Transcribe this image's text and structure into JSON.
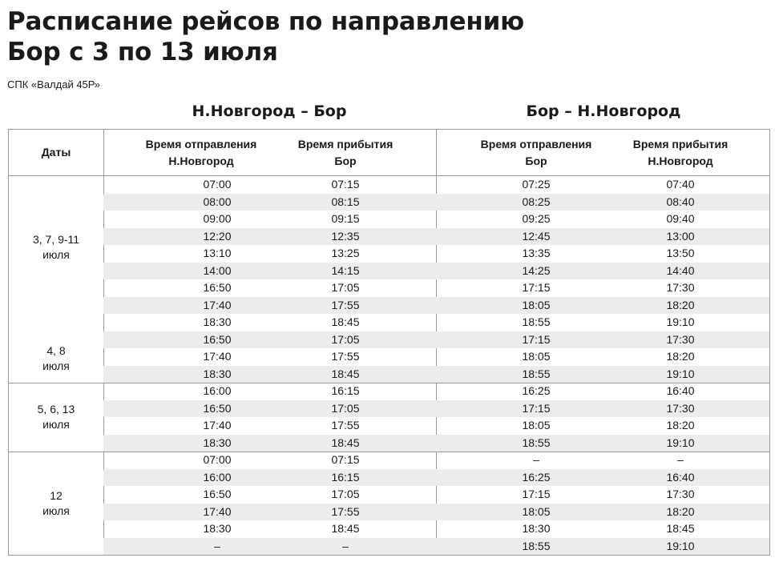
{
  "title": [
    "Расписание рейсов по направлению",
    "Бор с 3 по 13 июля"
  ],
  "subtitle": "СПК «Валдай 45Р»",
  "directions": {
    "left": "Н.Новгород – Бор",
    "right": "Бор – Н.Новгород"
  },
  "columns": {
    "dates": [
      "Даты"
    ],
    "dep_left": [
      "Время отправления",
      "Н.Новгород"
    ],
    "arr_left": [
      "Время прибытия",
      "Бор"
    ],
    "dep_right": [
      "Время отправления",
      "Бор"
    ],
    "arr_right": [
      "Время прибытия",
      "Н.Новгород"
    ]
  },
  "date_groups": [
    {
      "label": [
        "3, 7, 9-11",
        "июля"
      ],
      "first_row": 0,
      "row_count": 9
    },
    {
      "label": [
        "4, 8",
        "июля"
      ],
      "first_row": 9,
      "row_count": 3
    },
    {
      "label": [
        "5, 6, 13",
        "июля"
      ],
      "first_row": 12,
      "row_count": 4
    },
    {
      "label": [
        "12",
        "июля"
      ],
      "first_row": 16,
      "row_count": 6
    }
  ],
  "rows": [
    [
      "07:00",
      "07:15",
      "07:25",
      "07:40"
    ],
    [
      "08:00",
      "08:15",
      "08:25",
      "08:40"
    ],
    [
      "09:00",
      "09:15",
      "09:25",
      "09:40"
    ],
    [
      "12:20",
      "12:35",
      "12:45",
      "13:00"
    ],
    [
      "13:10",
      "13:25",
      "13:35",
      "13:50"
    ],
    [
      "14:00",
      "14:15",
      "14:25",
      "14:40"
    ],
    [
      "16:50",
      "17:05",
      "17:15",
      "17:30"
    ],
    [
      "17:40",
      "17:55",
      "18:05",
      "18:20"
    ],
    [
      "18:30",
      "18:45",
      "18:55",
      "19:10"
    ],
    [
      "16:50",
      "17:05",
      "17:15",
      "17:30"
    ],
    [
      "17:40",
      "17:55",
      "18:05",
      "18:20"
    ],
    [
      "18:30",
      "18:45",
      "18:55",
      "19:10"
    ],
    [
      "16:00",
      "16:15",
      "16:25",
      "16:40"
    ],
    [
      "16:50",
      "17:05",
      "17:15",
      "17:30"
    ],
    [
      "17:40",
      "17:55",
      "18:05",
      "18:20"
    ],
    [
      "18:30",
      "18:45",
      "18:55",
      "19:10"
    ],
    [
      "07:00",
      "07:15",
      "–",
      "–"
    ],
    [
      "16:00",
      "16:15",
      "16:25",
      "16:40"
    ],
    [
      "16:50",
      "17:05",
      "17:15",
      "17:30"
    ],
    [
      "17:40",
      "17:55",
      "18:05",
      "18:20"
    ],
    [
      "18:30",
      "18:45",
      "18:30",
      "18:45"
    ],
    [
      "–",
      "–",
      "18:55",
      "19:10"
    ]
  ]
}
